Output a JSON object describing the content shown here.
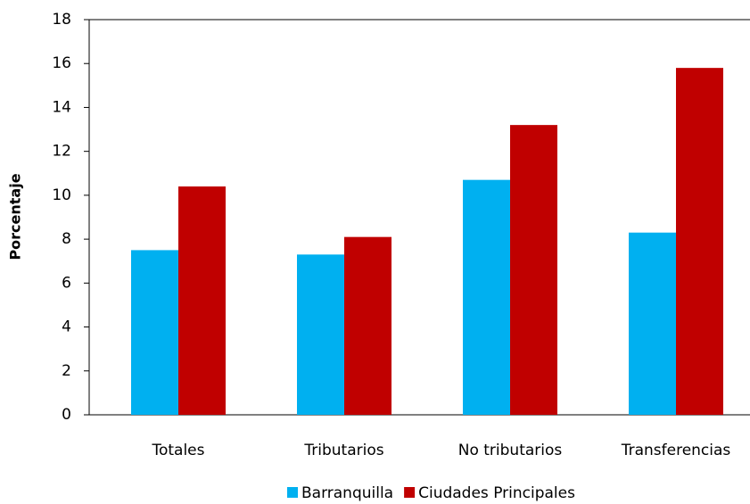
{
  "chart_data": {
    "type": "bar",
    "y_label": "Porcentaje",
    "categories": [
      "Totales",
      "Tributarios",
      "No tributarios",
      "Transferencias"
    ],
    "series": [
      {
        "name": "Barranquilla",
        "color": "#00b0f0",
        "values": [
          7.5,
          7.3,
          10.7,
          8.3
        ]
      },
      {
        "name": "Ciudades Principales",
        "color": "#c00000",
        "values": [
          10.4,
          8.1,
          13.2,
          15.8
        ]
      }
    ],
    "ylim": [
      0,
      18
    ],
    "yticks": [
      0,
      2,
      4,
      6,
      8,
      10,
      12,
      14,
      16,
      18
    ],
    "grid": false,
    "legend": "bottom"
  }
}
